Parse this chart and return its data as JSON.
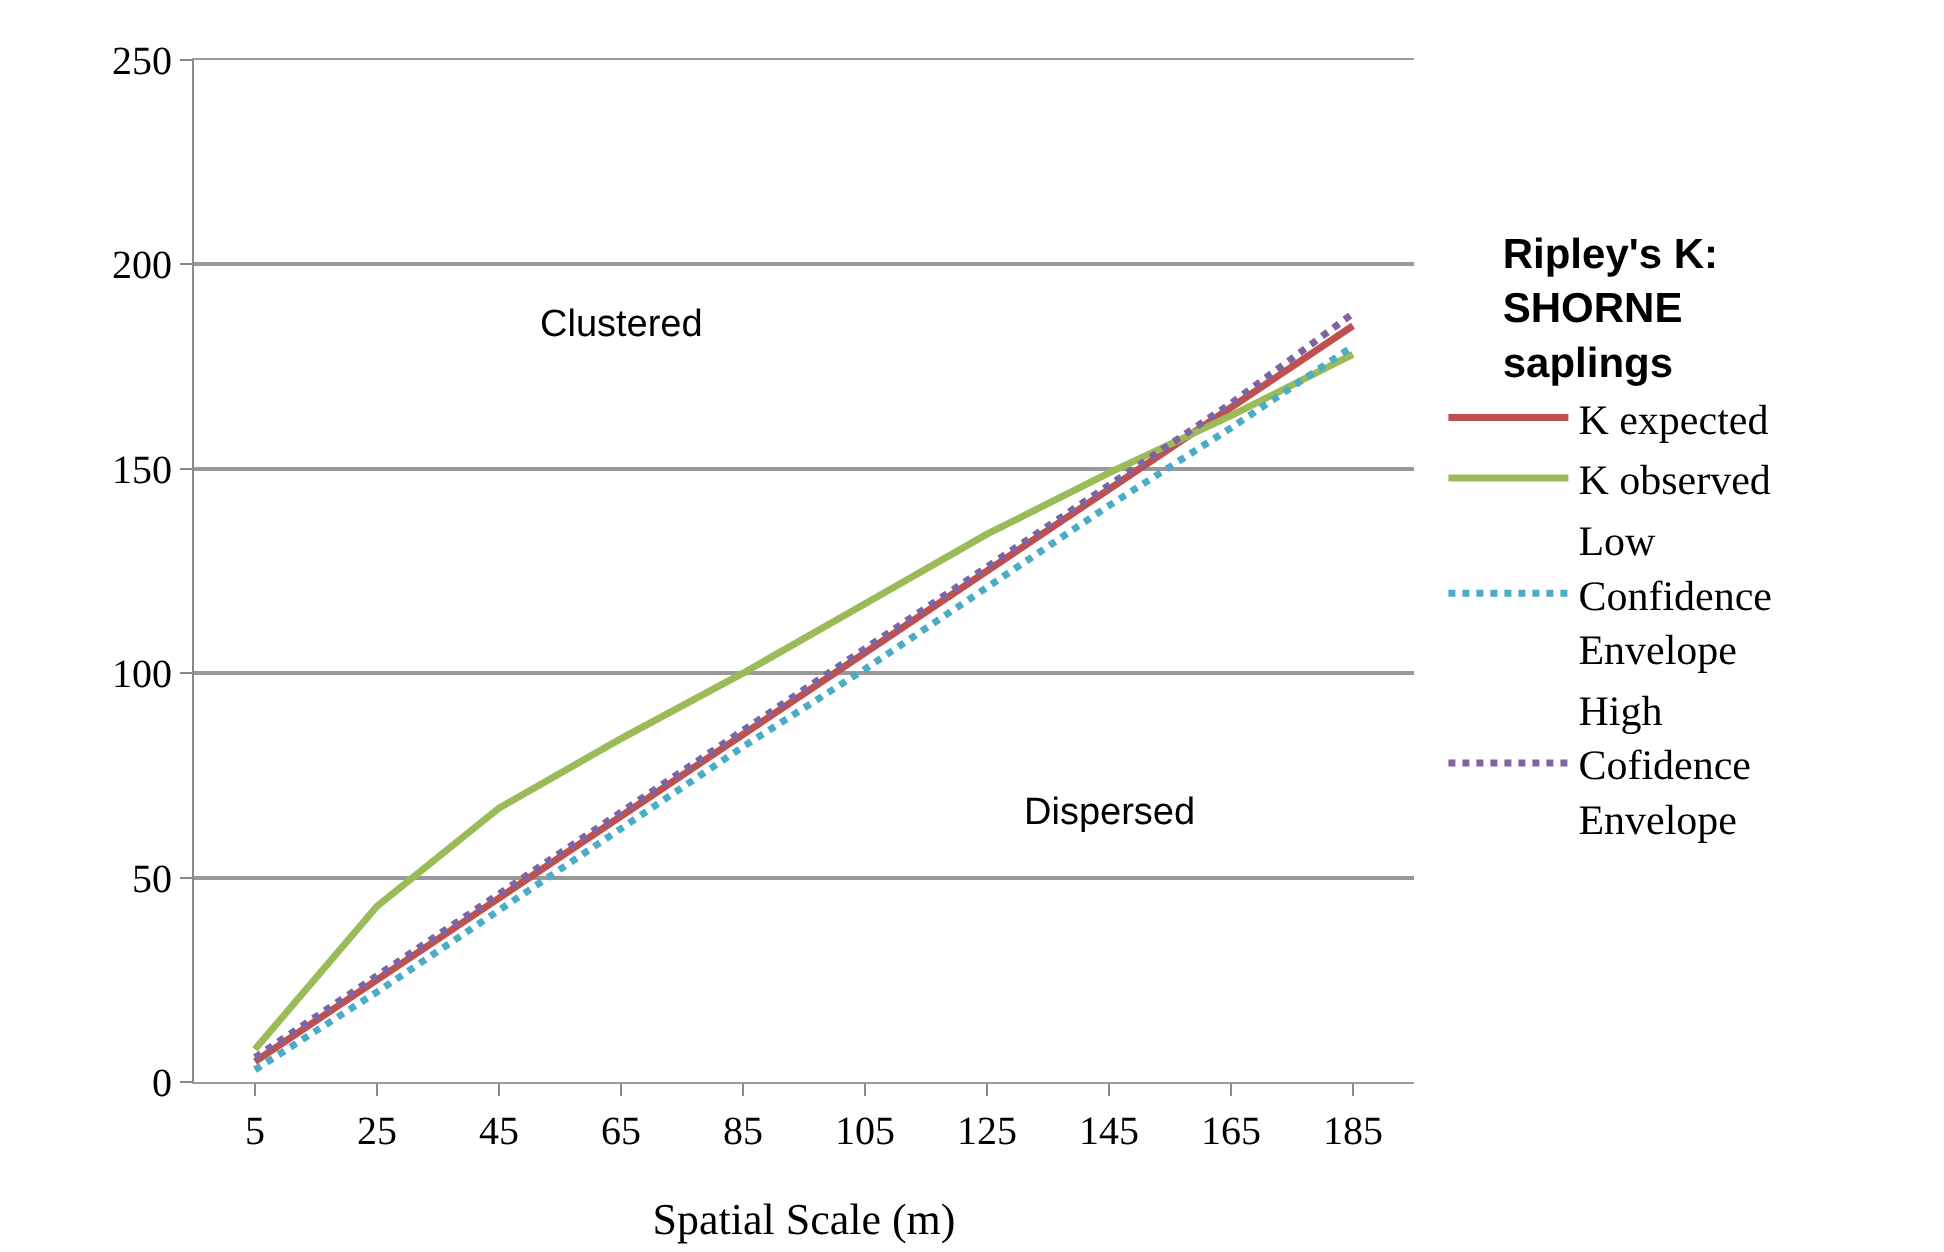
{
  "chart_data": {
    "type": "line",
    "xlabel": "Spatial Scale (m)",
    "legend_title": "Ripley's K: SHORNE saplings",
    "categories": [
      "5",
      "25",
      "45",
      "65",
      "85",
      "105",
      "125",
      "145",
      "165",
      "185"
    ],
    "series": [
      {
        "name": "K expected",
        "color": "#c0504d",
        "values": [
          5,
          25,
          45,
          65,
          85,
          105,
          125,
          145,
          165,
          185
        ]
      },
      {
        "name": "K observed",
        "color": "#9bbb59",
        "values": [
          8,
          43,
          67,
          84,
          100,
          117,
          134,
          149,
          163,
          178
        ]
      },
      {
        "name": "Low Confidence Envelope",
        "color": "#4bacc6",
        "line_style": "dotted",
        "values": [
          3,
          22,
          42,
          62,
          82,
          101,
          121,
          141,
          160,
          180
        ]
      },
      {
        "name": "High Cofidence Envelope",
        "color": "#8064a2",
        "line_style": "dotted",
        "values": [
          6,
          26,
          46,
          66,
          86,
          106,
          126,
          146,
          166,
          188
        ]
      }
    ],
    "ylim": [
      0,
      250
    ],
    "yticks": [
      0,
      50,
      100,
      150,
      200,
      250
    ],
    "grid": "y",
    "legend": "right",
    "line_style": "solid",
    "marker": "none",
    "annotations": [
      "Clustered",
      "Dispersed"
    ]
  }
}
